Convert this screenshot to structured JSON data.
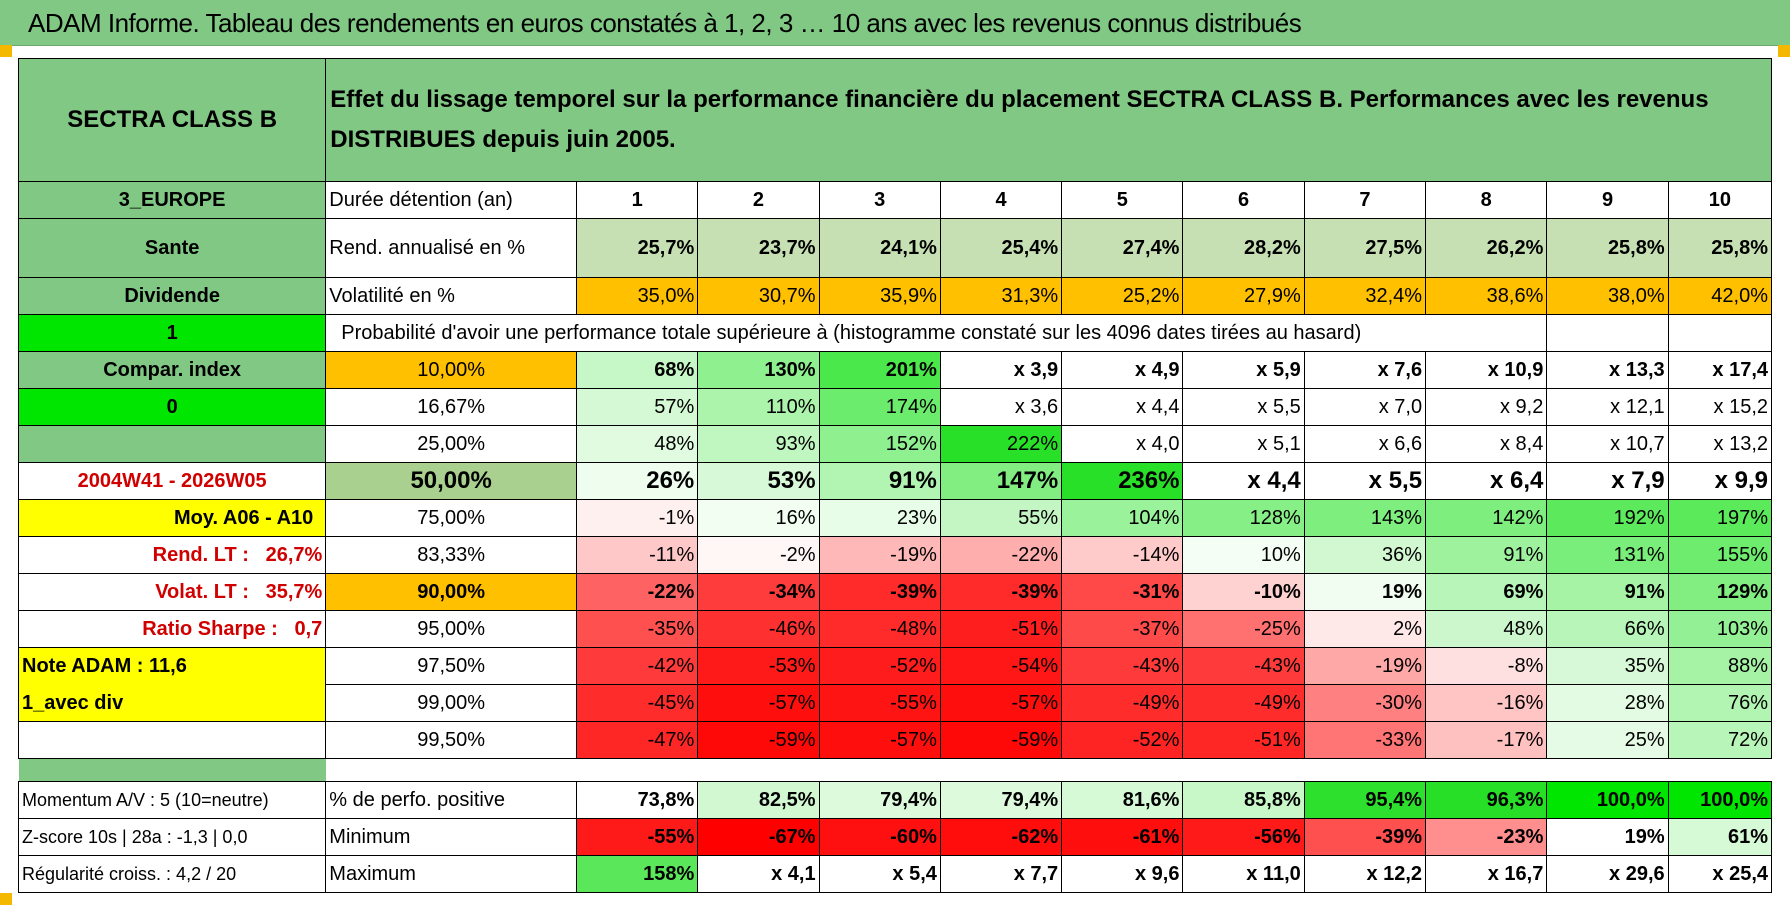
{
  "title": "ADAM Informe. Tableau des rendements en euros constatés à 1, 2, 3 … 10 ans avec les revenus connus distribués",
  "header": {
    "fund": "SECTRA CLASS B",
    "description": "Effet du lissage temporel sur la performance financière du placement SECTRA CLASS B. Performances avec les revenus DISTRIBUES depuis juin 2005."
  },
  "rows": [
    {
      "left": "3_EUROPE",
      "label": "Durée détention (an)",
      "values": [
        "1",
        "2",
        "3",
        "4",
        "5",
        "6",
        "7",
        "8",
        "9",
        "10"
      ]
    },
    {
      "left": "Sante",
      "label": "Rend. annualisé en %",
      "values": [
        "25,7%",
        "23,7%",
        "24,1%",
        "25,4%",
        "27,4%",
        "28,2%",
        "27,5%",
        "26,2%",
        "25,8%",
        "25,8%"
      ]
    },
    {
      "left": "Dividende",
      "label": "Volatilité en %",
      "values": [
        "35,0%",
        "30,7%",
        "35,9%",
        "31,3%",
        "25,2%",
        "27,9%",
        "32,4%",
        "38,6%",
        "38,0%",
        "42,0%"
      ]
    },
    {
      "left": "1",
      "label": "Probabilité d'avoir une performance totale supérieure à (histogramme constaté sur les 4096 dates tirées au hasard)",
      "values": []
    },
    {
      "left": "Compar. index",
      "label": "10,00%",
      "values": [
        "68%",
        "130%",
        "201%",
        "x 3,9",
        "x 4,9",
        "x 5,9",
        "x 7,6",
        "x 10,9",
        "x 13,3",
        "x 17,4"
      ]
    },
    {
      "left": "0",
      "label": "16,67%",
      "values": [
        "57%",
        "110%",
        "174%",
        "x 3,6",
        "x 4,4",
        "x 5,5",
        "x 7,0",
        "x 9,2",
        "x 12,1",
        "x 15,2"
      ]
    },
    {
      "left": "",
      "label": "25,00%",
      "values": [
        "48%",
        "93%",
        "152%",
        "222%",
        "x 4,0",
        "x 5,1",
        "x 6,6",
        "x 8,4",
        "x 10,7",
        "x 13,2"
      ]
    },
    {
      "left": "2004W41 - 2026W05",
      "label": "50,00%",
      "values": [
        "26%",
        "53%",
        "91%",
        "147%",
        "236%",
        "x 4,4",
        "x 5,5",
        "x 6,4",
        "x 7,9",
        "x 9,9"
      ]
    },
    {
      "left": "Moy. A06 - A10",
      "label": "75,00%",
      "values": [
        "-1%",
        "16%",
        "23%",
        "55%",
        "104%",
        "128%",
        "143%",
        "142%",
        "192%",
        "197%"
      ]
    },
    {
      "left": "Rend. LT :",
      "left_value": "26,7%",
      "label": "83,33%",
      "values": [
        "-11%",
        "-2%",
        "-19%",
        "-22%",
        "-14%",
        "10%",
        "36%",
        "91%",
        "131%",
        "155%"
      ]
    },
    {
      "left": "Volat. LT :",
      "left_value": "35,7%",
      "label": "90,00%",
      "values": [
        "-22%",
        "-34%",
        "-39%",
        "-39%",
        "-31%",
        "-10%",
        "19%",
        "69%",
        "91%",
        "129%"
      ]
    },
    {
      "left": "Ratio Sharpe :",
      "left_value": "0,7",
      "label": "95,00%",
      "values": [
        "-35%",
        "-46%",
        "-48%",
        "-51%",
        "-37%",
        "-25%",
        "2%",
        "48%",
        "66%",
        "103%"
      ]
    },
    {
      "left": "Note ADAM : 11,6",
      "label": "97,50%",
      "values": [
        "-42%",
        "-53%",
        "-52%",
        "-54%",
        "-43%",
        "-43%",
        "-19%",
        "-8%",
        "35%",
        "88%"
      ]
    },
    {
      "left": "1_avec div",
      "label": "99,00%",
      "values": [
        "-45%",
        "-57%",
        "-55%",
        "-57%",
        "-49%",
        "-49%",
        "-30%",
        "-16%",
        "28%",
        "76%"
      ]
    },
    {
      "left": "",
      "label": "99,50%",
      "values": [
        "-47%",
        "-59%",
        "-57%",
        "-59%",
        "-52%",
        "-51%",
        "-33%",
        "-17%",
        "25%",
        "72%"
      ]
    },
    {
      "left": "Momentum A/V : 5 (10=neutre)",
      "label": "% de perfo. positive",
      "values": [
        "73,8%",
        "82,5%",
        "79,4%",
        "79,4%",
        "81,6%",
        "85,8%",
        "95,4%",
        "96,3%",
        "100,0%",
        "100,0%"
      ]
    },
    {
      "left": "Z-score 10s | 28a : -1,3 | 0,0",
      "label": "Minimum",
      "values": [
        "-55%",
        "-67%",
        "-60%",
        "-62%",
        "-61%",
        "-56%",
        "-39%",
        "-23%",
        "19%",
        "61%"
      ]
    },
    {
      "left": "Régularité croiss. : 4,2 / 20",
      "label": "Maximum",
      "values": [
        "158%",
        "x 4,1",
        "x 5,4",
        "x 7,7",
        "x 9,6",
        "x 11,0",
        "x 12,2",
        "x 16,7",
        "x 29,6",
        "x 25,4"
      ]
    }
  ],
  "colors": {
    "header_green": "#80c884",
    "bright_green": "#00e600",
    "yellow": "#ffff00",
    "orange": "#ffc000",
    "label_red": "#d10000",
    "cell_tints": [
      [
        "#c6e0b4",
        "#c6e0b4",
        "#c6e0b4",
        "#c6e0b4",
        "#c6e0b4",
        "#c6e0b4",
        "#c6e0b4",
        "#c6e0b4",
        "#c6e0b4",
        "#c6e0b4"
      ],
      [
        "#ffc000",
        "#ffc000",
        "#ffc000",
        "#ffc000",
        "#ffc000",
        "#ffc000",
        "#ffc000",
        "#ffc000",
        "#ffc000",
        "#ffc000"
      ],
      [
        "#c6f7c6",
        "#8ef08e",
        "#4ae84a",
        "#ffffff",
        "#ffffff",
        "#ffffff",
        "#ffffff",
        "#ffffff",
        "#ffffff",
        "#ffffff"
      ],
      [
        "#d4f9d4",
        "#acf4ac",
        "#6cec6c",
        "#ffffff",
        "#ffffff",
        "#ffffff",
        "#ffffff",
        "#ffffff",
        "#ffffff",
        "#ffffff"
      ],
      [
        "#e0fbe0",
        "#c0f7c0",
        "#8ef08e",
        "#28e028",
        "#ffffff",
        "#ffffff",
        "#ffffff",
        "#ffffff",
        "#ffffff",
        "#ffffff"
      ],
      [
        "#eefdee",
        "#d8f9d8",
        "#b2f5b2",
        "#82ee82",
        "#28e028",
        "#ffffff",
        "#ffffff",
        "#ffffff",
        "#ffffff",
        "#ffffff"
      ],
      [
        "#fff0f0",
        "#f2fef2",
        "#e8fde8",
        "#c4f6c4",
        "#9af29a",
        "#86ef86",
        "#7eee7e",
        "#7eee7e",
        "#5cea5c",
        "#5aea5a"
      ],
      [
        "#ffc8c8",
        "#fff6f6",
        "#ffb8b8",
        "#ffaeae",
        "#ffcaca",
        "#f4fef4",
        "#d2f8d2",
        "#9ef29e",
        "#7aee7a",
        "#6eec6e"
      ],
      [
        "#ff6262",
        "#ff3c3c",
        "#ff2a2a",
        "#ff2a2a",
        "#ff4848",
        "#ffd2d2",
        "#f0fdf0",
        "#b8f5b8",
        "#a6f3a6",
        "#82ee82"
      ],
      [
        "#ff5050",
        "#ff3030",
        "#ff2a2a",
        "#ff1e1e",
        "#ff4a4a",
        "#ff7070",
        "#ffe8e8",
        "#ccf7cc",
        "#b8f5b8",
        "#94f094"
      ],
      [
        "#ff3a3a",
        "#ff1a1a",
        "#ff1c1c",
        "#ff1616",
        "#ff3a3a",
        "#ff3a3a",
        "#ffa8a8",
        "#ffe0e0",
        "#d8f9d8",
        "#a6f3a6"
      ],
      [
        "#ff2c2c",
        "#ff0e0e",
        "#ff1414",
        "#ff0e0e",
        "#ff2c2c",
        "#ff2c2c",
        "#ff8080",
        "#ffc4c4",
        "#e2fbe2",
        "#b2f5b2"
      ],
      [
        "#ff2626",
        "#ff0808",
        "#ff0e0e",
        "#ff0808",
        "#ff2424",
        "#ff2626",
        "#ff7474",
        "#ffc0c0",
        "#e6fbe6",
        "#b8f5b8"
      ],
      [
        "#ffffff",
        "#d2f8d2",
        "#ddfadd",
        "#ddfadd",
        "#d6f9d6",
        "#c8f7c8",
        "#2ee02e",
        "#26df26",
        "#00e600",
        "#00e600"
      ],
      [
        "#ff1a1a",
        "#ff0000",
        "#ff1010",
        "#ff0c0c",
        "#ff0e0e",
        "#ff1a1a",
        "#ff5050",
        "#ff8e8e",
        "#ffffff",
        "#d6f9d6"
      ],
      [
        "#5ae85a",
        "#ffffff",
        "#ffffff",
        "#ffffff",
        "#ffffff",
        "#ffffff",
        "#ffffff",
        "#ffffff",
        "#ffffff",
        "#ffffff"
      ]
    ]
  }
}
